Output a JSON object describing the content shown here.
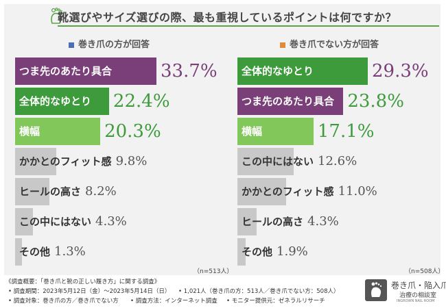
{
  "title": "靴選びやサイズ選びの際、最も重視しているポイントは何ですか？",
  "chart_data": [
    {
      "type": "bar",
      "subtitle": "巻き爪の方が回答",
      "marker_color": "#4a6fb5",
      "n_label": "（n=513人）",
      "categories": [
        "つま先のあたり具合",
        "全体的なゆとり",
        "横幅",
        "かかとのフィット感",
        "ヒールの高さ",
        "この中にはない",
        "その他"
      ],
      "values": [
        33.7,
        22.4,
        20.3,
        9.8,
        8.2,
        4.3,
        1.3
      ],
      "colors": [
        "#7a3e78",
        "#3d9b3c",
        "#82c75a",
        "#c8c8c8",
        "#c8c8c8",
        "#c8c8c8",
        "#c8c8c8"
      ],
      "value_colors": [
        "#7a3e78",
        "#3d9b3c",
        "#3d9b3c",
        "#555555",
        "#555555",
        "#555555",
        "#555555"
      ],
      "label_colors": [
        "#ffffff",
        "#ffffff",
        "#ffffff",
        "#333333",
        "#333333",
        "#333333",
        "#333333"
      ],
      "xlim": [
        0,
        33.7
      ]
    },
    {
      "type": "bar",
      "subtitle": "巻き爪でない方が回答",
      "marker_color": "#e08a3c",
      "n_label": "（n=508人）",
      "categories": [
        "全体的なゆとり",
        "つま先のあたり具合",
        "横幅",
        "この中にはない",
        "かかとのフィット感",
        "ヒールの高さ",
        "その他"
      ],
      "values": [
        29.3,
        23.8,
        17.1,
        12.6,
        11.0,
        4.3,
        1.9
      ],
      "colors": [
        "#3d9b3c",
        "#7a3e78",
        "#82c75a",
        "#c8c8c8",
        "#c8c8c8",
        "#c8c8c8",
        "#c8c8c8"
      ],
      "value_colors": [
        "#7a3e78",
        "#3d9b3c",
        "#3d9b3c",
        "#555555",
        "#555555",
        "#555555",
        "#555555"
      ],
      "label_colors": [
        "#ffffff",
        "#ffffff",
        "#ffffff",
        "#333333",
        "#333333",
        "#333333",
        "#333333"
      ],
      "xlim": [
        0,
        29.3
      ]
    }
  ],
  "footer": {
    "overview": "《調査概要：「巻き爪と靴の正しい履き方」に関する調査》",
    "period": "• 調査期間：2023年5月12日（金）〜2023年5月14日（日）",
    "count": "• 1,021人（巻き爪の方：513人／巻き爪でない方：508人）",
    "target": "• 調査対象：巻き爪の方／巻き爪でない方",
    "method": "• 調査方法：インターネット調査",
    "provider": "• モニター提供元：ゼネラルリサーチ"
  },
  "brand": {
    "line1": "巻き爪・陥入爪",
    "line2": "治療の相談室",
    "line3": "INGROWN NAIL ROOM"
  }
}
